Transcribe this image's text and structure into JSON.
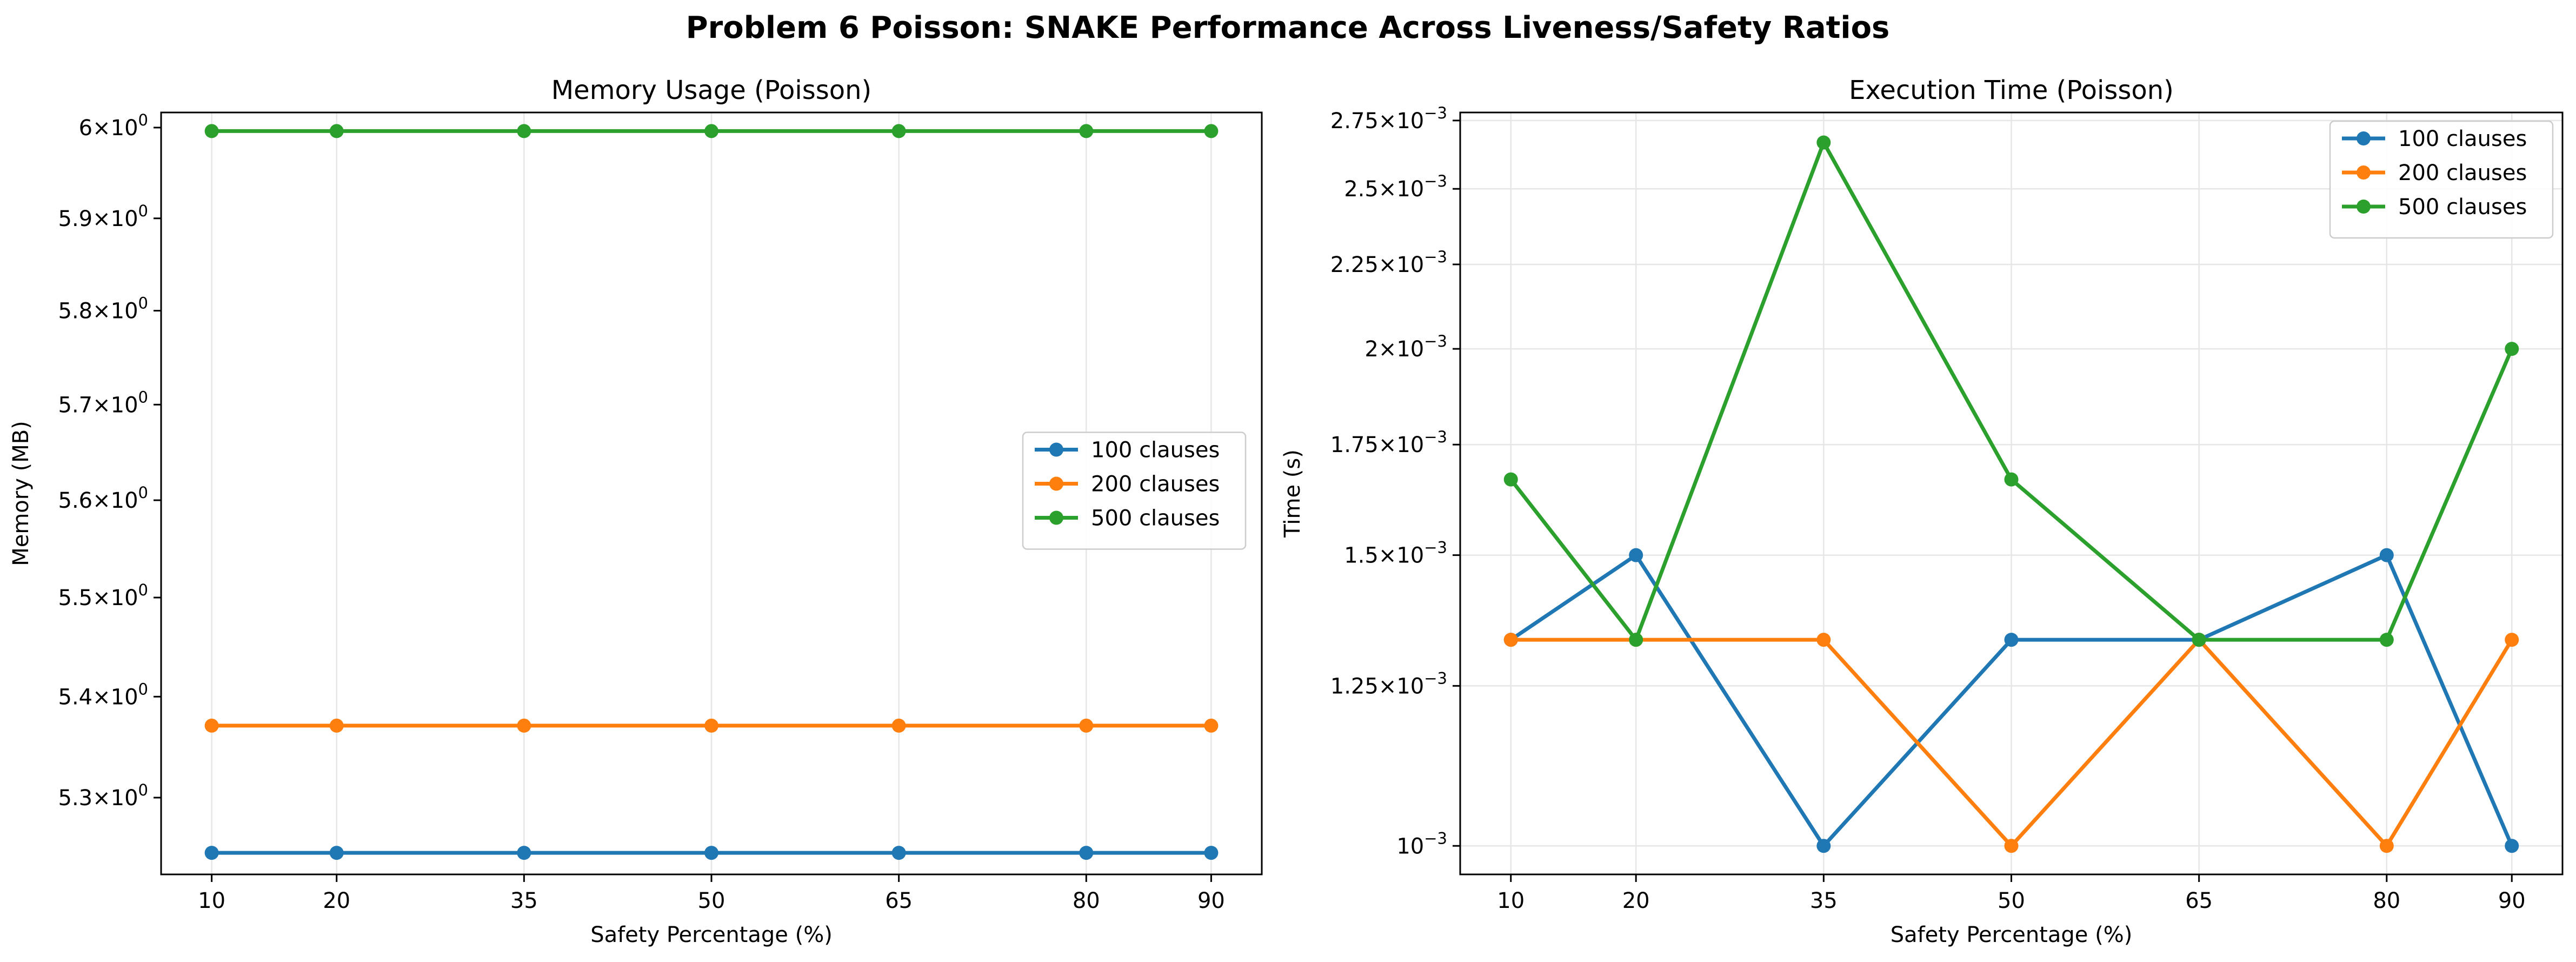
{
  "figure_title": "Problem 6 Poisson: SNAKE Performance Across Liveness/Safety Ratios",
  "chart_data": [
    {
      "type": "line",
      "title": "Memory Usage (Poisson)",
      "xlabel": "Safety Percentage (%)",
      "ylabel": "Memory (MB)",
      "yscale": "log",
      "grid": "x",
      "legend_position": "center-right",
      "x": [
        10,
        20,
        35,
        50,
        65,
        80,
        90
      ],
      "xlim": [
        5.95,
        94.05
      ],
      "ylim": [
        5.2252,
        6.0168
      ],
      "yticks": [
        {
          "value": 5.3,
          "mantissa": "5.3",
          "base": "10",
          "exp": "0"
        },
        {
          "value": 5.4,
          "mantissa": "5.4",
          "base": "10",
          "exp": "0"
        },
        {
          "value": 5.5,
          "mantissa": "5.5",
          "base": "10",
          "exp": "0"
        },
        {
          "value": 5.6,
          "mantissa": "5.6",
          "base": "10",
          "exp": "0"
        },
        {
          "value": 5.7,
          "mantissa": "5.7",
          "base": "10",
          "exp": "0"
        },
        {
          "value": 5.8,
          "mantissa": "5.8",
          "base": "10",
          "exp": "0"
        },
        {
          "value": 5.9,
          "mantissa": "5.9",
          "base": "10",
          "exp": "0"
        },
        {
          "value": 6.0,
          "mantissa": "6",
          "base": "10",
          "exp": "0"
        }
      ],
      "series": [
        {
          "name": "100 clauses",
          "color": "#1f77b4",
          "values": [
            5.2461,
            5.2461,
            5.2461,
            5.2461,
            5.2461,
            5.2461,
            5.2461
          ]
        },
        {
          "name": "200 clauses",
          "color": "#ff7f0e",
          "values": [
            5.3711,
            5.3711,
            5.3711,
            5.3711,
            5.3711,
            5.3711,
            5.3711
          ]
        },
        {
          "name": "500 clauses",
          "color": "#2ca02c",
          "values": [
            5.9961,
            5.9961,
            5.9961,
            5.9961,
            5.9961,
            5.9961,
            5.9961
          ]
        }
      ]
    },
    {
      "type": "line",
      "title": "Execution Time (Poisson)",
      "xlabel": "Safety Percentage (%)",
      "ylabel": "Time (s)",
      "yscale": "log",
      "grid": "both",
      "legend_position": "top-right",
      "x": [
        10,
        20,
        35,
        50,
        65,
        80,
        90
      ],
      "xlim": [
        5.95,
        94.05
      ],
      "ylim": [
        0.000961,
        0.002781
      ],
      "yticks": [
        {
          "value": 0.001,
          "mantissa": "",
          "base": "10",
          "exp": "−3"
        },
        {
          "value": 0.00125,
          "mantissa": "1.25",
          "base": "10",
          "exp": "−3"
        },
        {
          "value": 0.0015,
          "mantissa": "1.5",
          "base": "10",
          "exp": "−3"
        },
        {
          "value": 0.00175,
          "mantissa": "1.75",
          "base": "10",
          "exp": "−3"
        },
        {
          "value": 0.002,
          "mantissa": "2",
          "base": "10",
          "exp": "−3"
        },
        {
          "value": 0.00225,
          "mantissa": "2.25",
          "base": "10",
          "exp": "−3"
        },
        {
          "value": 0.0025,
          "mantissa": "2.5",
          "base": "10",
          "exp": "−3"
        },
        {
          "value": 0.00275,
          "mantissa": "2.75",
          "base": "10",
          "exp": "−3"
        }
      ],
      "series": [
        {
          "name": "100 clauses",
          "color": "#1f77b4",
          "values": [
            0.001333,
            0.0015,
            0.001,
            0.001333,
            0.001333,
            0.0015,
            0.001
          ]
        },
        {
          "name": "200 clauses",
          "color": "#ff7f0e",
          "values": [
            0.001333,
            0.001333,
            0.001333,
            0.001,
            0.001333,
            0.001,
            0.001333
          ]
        },
        {
          "name": "500 clauses",
          "color": "#2ca02c",
          "values": [
            0.001667,
            0.001333,
            0.002667,
            0.001667,
            0.001333,
            0.001333,
            0.002
          ]
        }
      ]
    }
  ]
}
